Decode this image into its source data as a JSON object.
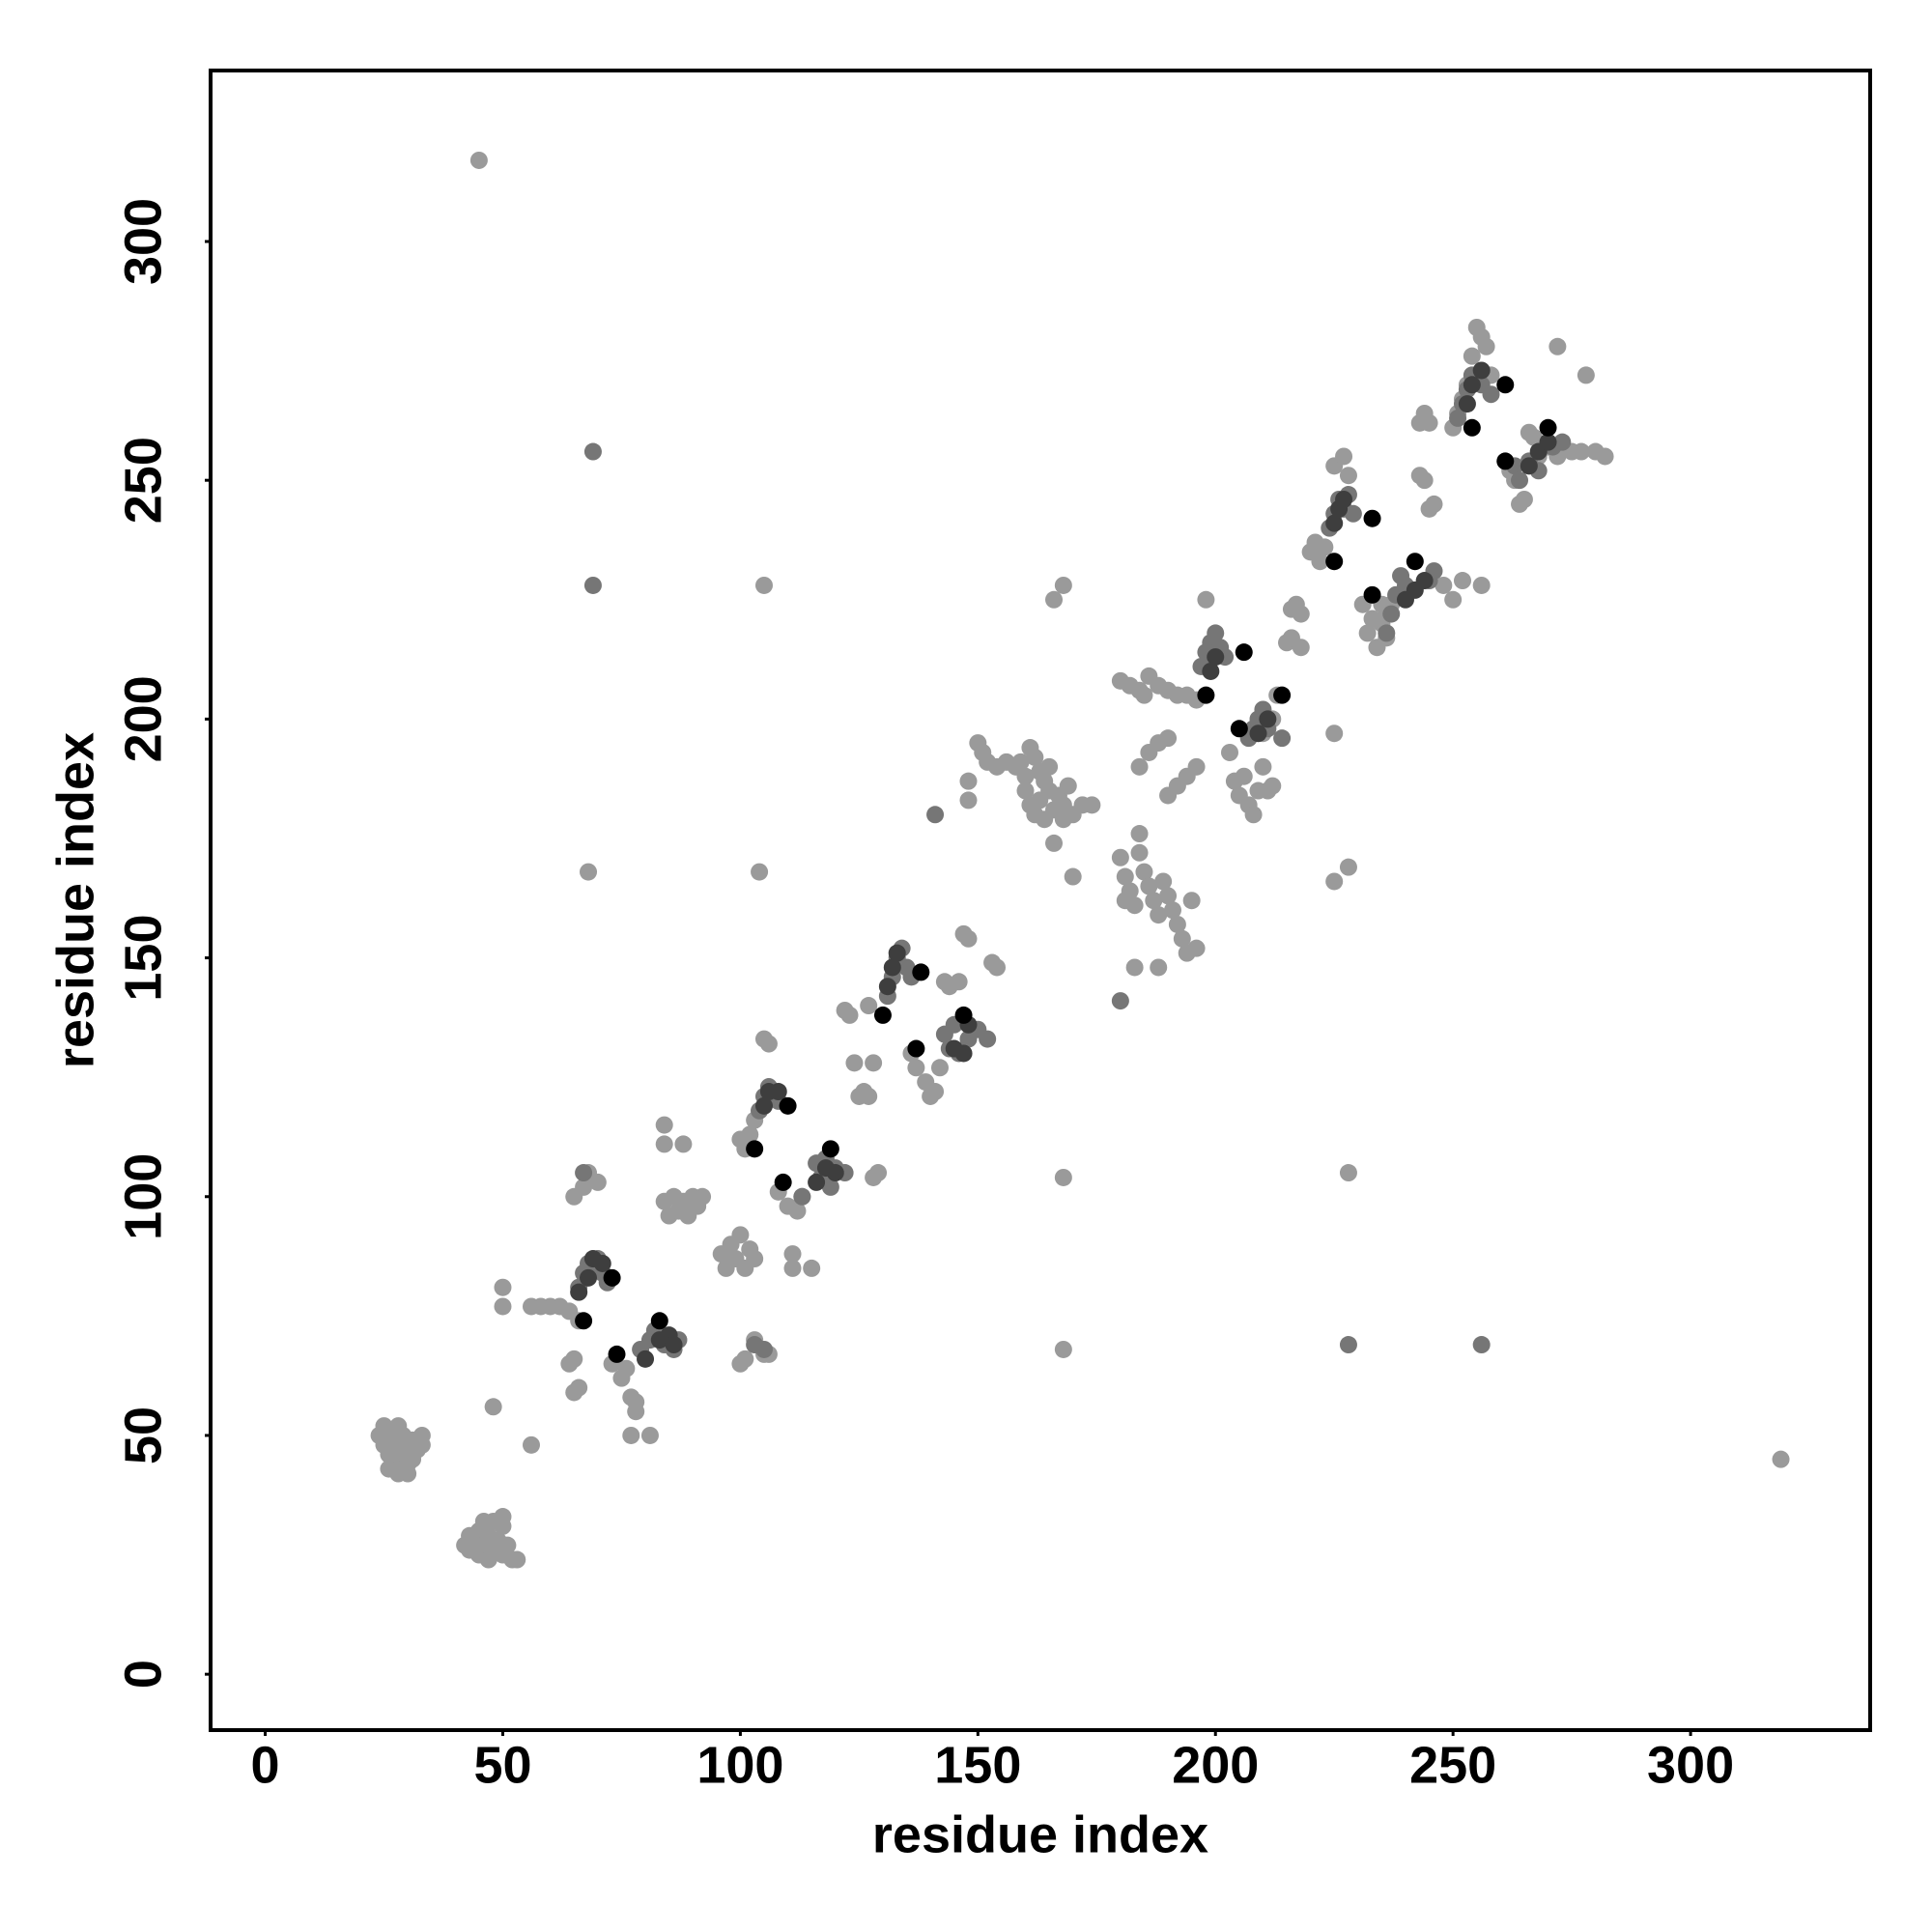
{
  "chart_data": {
    "type": "scatter",
    "xlabel": "residue index",
    "ylabel": "residue index",
    "xlim": [
      -11.5,
      337.8
    ],
    "ylim": [
      -11.7,
      335.8
    ],
    "xticks": [
      0,
      50,
      100,
      150,
      200,
      250,
      300
    ],
    "yticks": [
      0,
      50,
      100,
      150,
      200,
      250,
      300
    ],
    "series": [
      {
        "color": "#9a9a9a",
        "x": [
          24,
          25,
          25,
          26,
          26,
          27,
          27,
          27,
          28,
          28,
          28,
          29,
          29,
          29,
          30,
          30,
          31,
          31,
          32,
          33,
          33,
          26,
          30,
          28,
          42,
          43,
          43,
          44,
          45,
          45,
          46,
          47,
          47,
          48,
          48,
          49,
          50,
          50,
          51,
          52,
          53,
          46,
          50,
          44,
          45,
          319,
          68,
          105,
          104,
          168,
          166,
          168,
          168,
          228,
          225,
          228,
          48,
          56,
          50,
          50,
          56,
          58,
          60,
          62,
          64,
          66,
          65,
          67,
          68,
          70,
          64,
          65,
          65,
          66,
          75,
          77,
          78,
          78,
          77,
          81,
          76,
          73,
          84,
          85,
          86,
          87,
          88,
          89,
          90,
          91,
          92,
          84,
          84,
          88,
          96,
          97,
          98,
          99,
          100,
          101,
          102,
          103,
          100,
          101,
          103,
          105,
          106,
          101,
          102,
          103,
          104,
          105,
          106,
          100,
          108,
          110,
          112,
          113,
          111,
          115,
          111,
          122,
          123,
          124,
          125,
          126,
          127,
          127,
          128,
          128,
          129,
          136,
          137,
          139,
          140,
          141,
          142,
          143,
          144,
          146,
          147,
          148,
          153,
          154,
          148,
          148,
          150,
          151,
          152,
          154,
          156,
          158,
          159,
          160,
          161,
          162,
          163,
          164,
          165,
          160,
          161,
          162,
          163,
          165,
          166,
          167,
          168,
          169,
          170,
          172,
          174,
          166,
          168,
          164,
          170,
          180,
          181,
          182,
          183,
          184,
          184,
          185,
          186,
          187,
          188,
          189,
          190,
          191,
          192,
          193,
          194,
          195,
          196,
          183,
          188,
          181,
          180,
          182,
          184,
          185,
          186,
          188,
          190,
          192,
          194,
          196,
          198,
          184,
          186,
          188,
          190,
          190,
          192,
          194,
          196,
          203,
          204,
          205,
          206,
          207,
          208,
          209,
          210,
          211,
          212,
          212,
          213,
          210,
          225,
          216,
          217,
          218,
          215,
          216,
          218,
          220,
          221,
          222,
          223,
          225,
          227,
          228,
          231,
          232,
          233,
          234,
          235,
          236,
          237,
          238,
          235,
          236,
          243,
          244,
          245,
          243,
          244,
          245,
          246,
          250,
          251,
          252,
          253,
          254,
          255,
          256,
          257,
          258,
          248,
          250,
          252,
          256,
          272,
          278,
          262,
          263,
          264,
          265,
          266,
          267,
          268,
          270,
          272,
          275,
          277,
          280,
          282
        ],
        "values": [
          50,
          52,
          48,
          46,
          50,
          44,
          48,
          51,
          42,
          46,
          49,
          43,
          47,
          50,
          44,
          48,
          45,
          49,
          47,
          48,
          50,
          43,
          42,
          52,
          27,
          26,
          29,
          28,
          25,
          30,
          27,
          24,
          29,
          32,
          26,
          28,
          25,
          31,
          27,
          24,
          24,
          32,
          33,
          26,
          317,
          45,
          168,
          228,
          168,
          228,
          225,
          104,
          68,
          105,
          166,
          169,
          56,
          48,
          81,
          77,
          77,
          77,
          77,
          77,
          76,
          74,
          100,
          102,
          105,
          103,
          65,
          66,
          59,
          60,
          62,
          58,
          55,
          57,
          50,
          50,
          64,
          65,
          99,
          96,
          100,
          97,
          99,
          96,
          100,
          98,
          100,
          115,
          111,
          111,
          88,
          85,
          90,
          87,
          92,
          85,
          89,
          87,
          65,
          66,
          70,
          67,
          67,
          110,
          113,
          116,
          118,
          133,
          132,
          112,
          101,
          98,
          97,
          100,
          88,
          85,
          85,
          139,
          138,
          128,
          121,
          122,
          121,
          140,
          128,
          104,
          105,
          130,
          127,
          124,
          121,
          122,
          127,
          145,
          144,
          145,
          155,
          154,
          149,
          148,
          187,
          183,
          195,
          193,
          191,
          190,
          191,
          190,
          191,
          188,
          194,
          192,
          189,
          187,
          190,
          185,
          182,
          180,
          183,
          185,
          181,
          184,
          182,
          186,
          180,
          182,
          182,
          174,
          179,
          179,
          167,
          171,
          167,
          164,
          161,
          176,
          172,
          168,
          165,
          162,
          159,
          166,
          163,
          160,
          157,
          154,
          151,
          162,
          152,
          148,
          148,
          162,
          208,
          207,
          206,
          205,
          209,
          207,
          206,
          205,
          205,
          204,
          225,
          190,
          193,
          195,
          196,
          184,
          186,
          188,
          190,
          193,
          187,
          184,
          188,
          182,
          180,
          185,
          190,
          185,
          186,
          200,
          205,
          197,
          197,
          223,
          224,
          222,
          216,
          217,
          215,
          235,
          237,
          233,
          236,
          253,
          255,
          251,
          224,
          218,
          221,
          215,
          220,
          217,
          224,
          226,
          224,
          222,
          262,
          264,
          262,
          251,
          250,
          244,
          245,
          261,
          264,
          267,
          270,
          276,
          282,
          280,
          278,
          272,
          228,
          225,
          229,
          228,
          278,
          272,
          252,
          250,
          245,
          246,
          260,
          259,
          255,
          257,
          255,
          256,
          256,
          256,
          255
        ]
      },
      {
        "color": "#767676",
        "x": [
          69,
          69,
          228,
          256,
          141,
          180,
          66,
          67,
          68,
          69,
          70,
          71,
          72,
          67,
          79,
          81,
          82,
          84,
          86,
          87,
          103,
          105,
          104,
          105,
          106,
          107,
          108,
          113,
          116,
          117,
          118,
          119,
          120,
          122,
          131,
          132,
          133,
          134,
          135,
          136,
          143,
          144,
          145,
          146,
          148,
          150,
          152,
          197,
          198,
          199,
          200,
          201,
          202,
          207,
          208,
          209,
          210,
          211,
          214,
          224,
          225,
          226,
          227,
          228,
          229,
          236,
          237,
          238,
          239,
          240,
          245,
          246,
          251,
          252,
          253,
          254,
          256,
          258,
          263,
          264,
          266,
          268,
          271,
          273
        ],
        "values": [
          256,
          228,
          69,
          69,
          180,
          141,
          81,
          84,
          86,
          85,
          87,
          84,
          82,
          105,
          68,
          70,
          72,
          69,
          68,
          70,
          69,
          68,
          118,
          121,
          123,
          121,
          120,
          100,
          107,
          104,
          108,
          102,
          106,
          105,
          142,
          146,
          150,
          152,
          148,
          146,
          134,
          131,
          136,
          130,
          133,
          135,
          133,
          211,
          214,
          216,
          218,
          215,
          213,
          196,
          198,
          200,
          202,
          198,
          196,
          240,
          243,
          246,
          244,
          247,
          243,
          218,
          222,
          226,
          230,
          228,
          229,
          231,
          263,
          266,
          269,
          272,
          270,
          268,
          253,
          250,
          254,
          252,
          257,
          258
        ]
      },
      {
        "color": "#3e3e3e",
        "x": [
          66,
          68,
          69,
          71,
          80,
          83,
          85,
          86,
          105,
          106,
          108,
          116,
          118,
          120,
          131,
          132,
          133,
          145,
          147,
          148,
          199,
          200,
          209,
          211,
          225,
          226,
          227,
          240,
          242,
          244,
          253,
          254,
          256,
          266,
          268,
          270
        ],
        "values": [
          80,
          83,
          87,
          86,
          66,
          70,
          71,
          69,
          119,
          122,
          122,
          103,
          106,
          105,
          144,
          148,
          151,
          131,
          130,
          136,
          210,
          213,
          197,
          200,
          241,
          244,
          246,
          225,
          227,
          229,
          266,
          270,
          273,
          253,
          256,
          258
        ]
      },
      {
        "color": "#000000",
        "x": [
          67,
          73,
          74,
          83,
          103,
          110,
          109,
          119,
          130,
          138,
          137,
          147,
          198,
          206,
          205,
          214,
          225,
          233,
          233,
          242,
          254,
          261,
          261,
          270
        ],
        "values": [
          74,
          83,
          67,
          74,
          110,
          119,
          103,
          110,
          138,
          147,
          131,
          138,
          205,
          214,
          198,
          205,
          233,
          242,
          226,
          233,
          261,
          270,
          254,
          261
        ]
      }
    ]
  }
}
